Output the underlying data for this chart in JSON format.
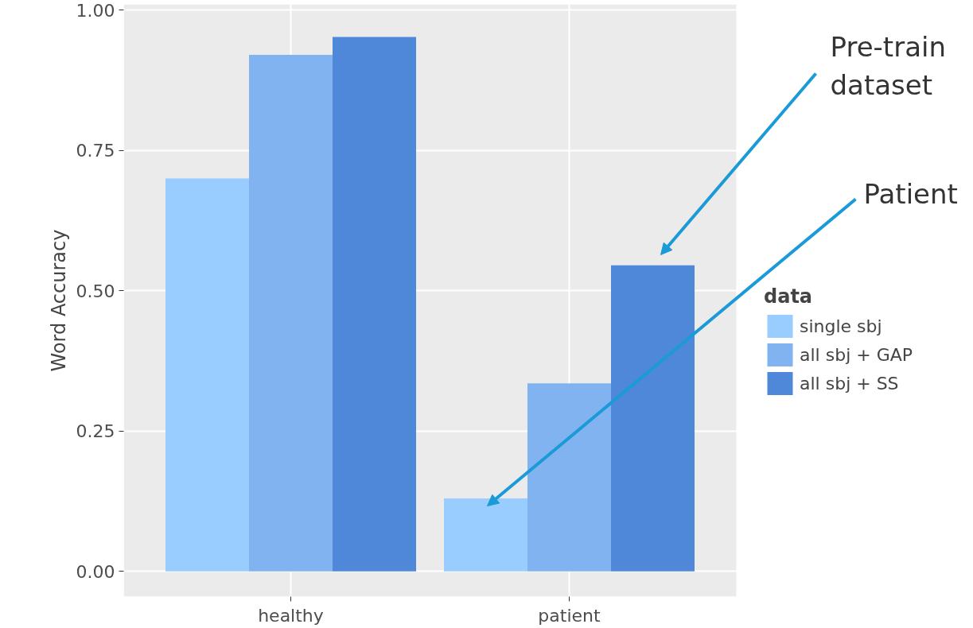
{
  "chart_data": {
    "type": "bar",
    "ylabel": "Word Accuracy",
    "legend_title": "data",
    "categories": [
      "healthy",
      "patient"
    ],
    "series": [
      {
        "name": "single sbj",
        "color": "#99ccff",
        "values": [
          0.7,
          0.13
        ]
      },
      {
        "name": "all sbj + GAP",
        "color": "#80b3f0",
        "values": [
          0.92,
          0.335
        ]
      },
      {
        "name": "all sbj + SS",
        "color": "#4f88d9",
        "values": [
          0.952,
          0.545
        ]
      }
    ],
    "ylim": [
      -0.045,
      1.01
    ],
    "yticks": [
      {
        "value": 0,
        "label": "0.00"
      },
      {
        "value": 0.25,
        "label": "0.25"
      },
      {
        "value": 0.5,
        "label": "0.50"
      },
      {
        "value": 0.75,
        "label": "0.75"
      },
      {
        "value": 1,
        "label": "1.00"
      }
    ],
    "grid": true,
    "legend": "right",
    "annotations": [
      "Pre-train dataset",
      "Patient"
    ]
  }
}
